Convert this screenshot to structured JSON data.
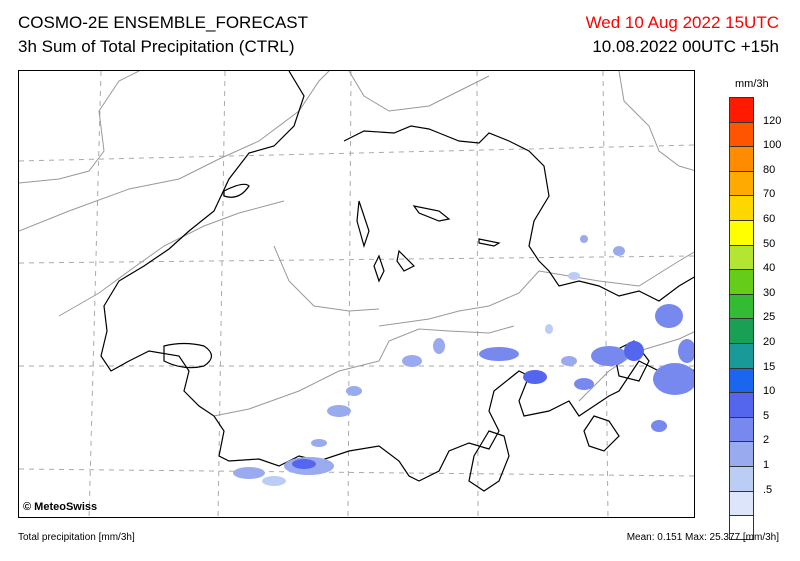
{
  "header": {
    "title": "COSMO-2E ENSEMBLE_FORECAST",
    "subtitle": "3h Sum of Total Precipitation (CTRL)",
    "valid_time": "Wed 10 Aug 2022 15UTC",
    "run_time": "10.08.2022 00UTC +15h",
    "valid_color": "#ff0000"
  },
  "map": {
    "credit": "© MeteoSwiss",
    "border_color": "#000000",
    "grid_color": "#aaaaaa",
    "region_color": "#999999"
  },
  "legend": {
    "unit": "mm/3h",
    "labels": [
      "120",
      "100",
      "80",
      "70",
      "60",
      "50",
      "40",
      "30",
      "25",
      "20",
      "15",
      "10",
      "5",
      "2",
      "1",
      ".5"
    ],
    "colors": [
      "#ff1a00",
      "#ff5500",
      "#ff8c00",
      "#ffaa00",
      "#ffd700",
      "#ffff00",
      "#b2e633",
      "#66cc1a",
      "#33bb33",
      "#1aa055",
      "#1a9999",
      "#1a66ee",
      "#5566ee",
      "#7788ee",
      "#99aaee",
      "#bbccf5",
      "#dde5fa",
      "#ffffff"
    ]
  },
  "footer": {
    "left": "Total precipitation [mm/3h]",
    "right": "Mean:   0.151 Max:  25.377 [mm/3h]"
  }
}
